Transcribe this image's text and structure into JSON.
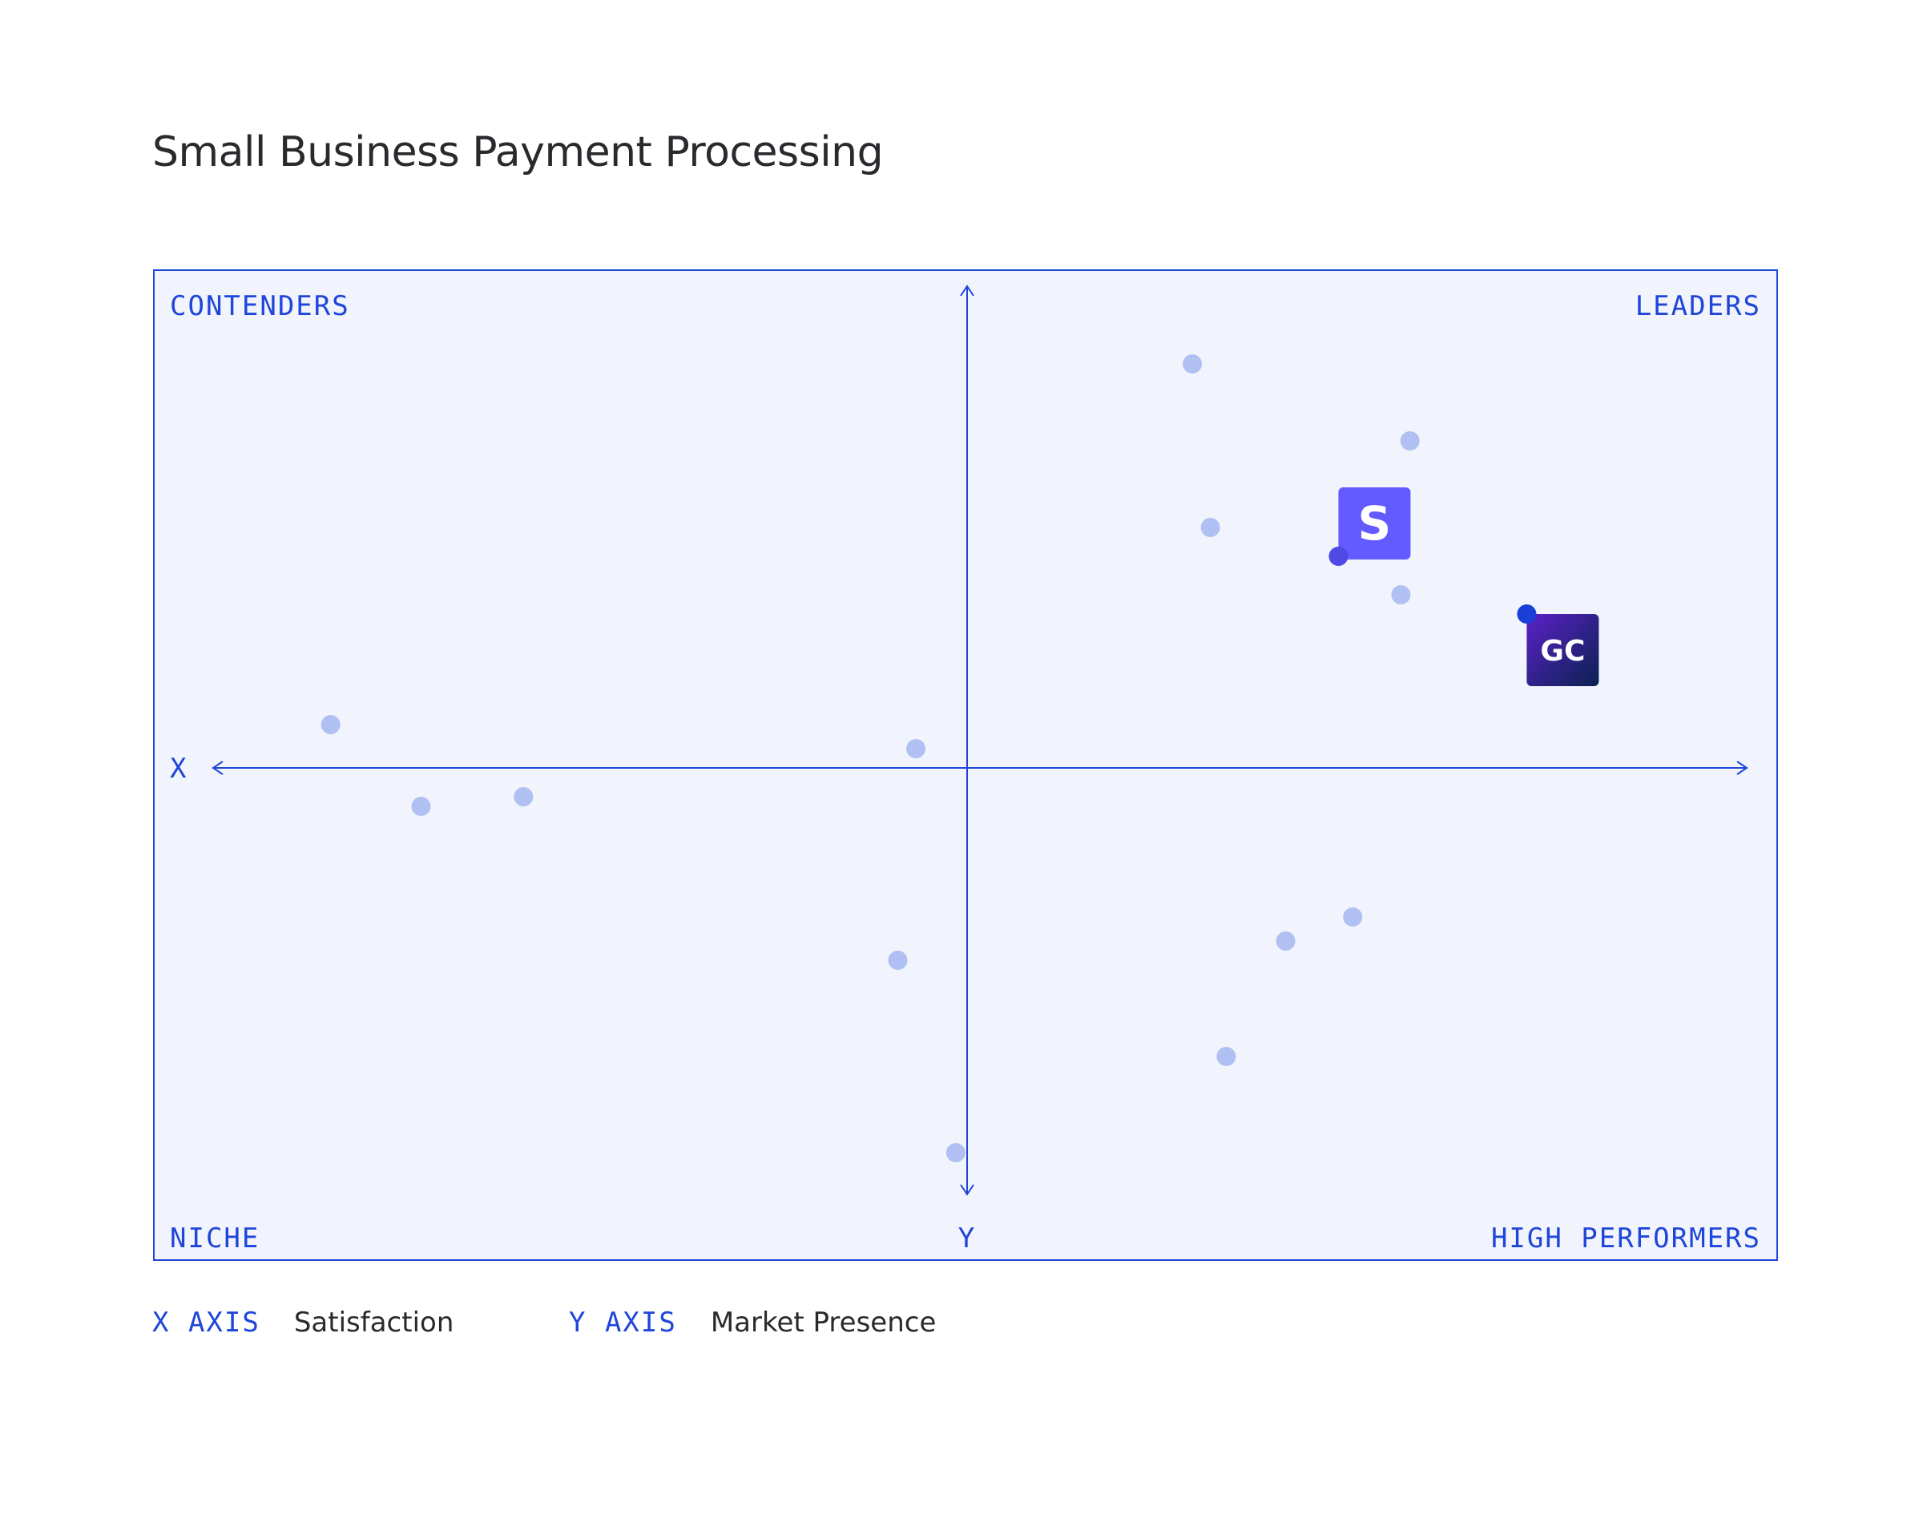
{
  "title": "Small Business Payment Processing",
  "chart_data": {
    "type": "scatter",
    "title": "Small Business Payment Processing",
    "xlabel": "Satisfaction",
    "ylabel": "Market Presence",
    "xlim": [
      -1,
      1
    ],
    "ylim": [
      -1,
      1
    ],
    "grid": false,
    "axis_letters": {
      "x": "X",
      "y": "Y"
    },
    "quadrants": {
      "top_left": "CONTENDERS",
      "top_right": "LEADERS",
      "bottom_left": "NICHE",
      "bottom_right": "HIGH PERFORMERS"
    },
    "points": [
      {
        "x": 0.299,
        "y": 0.84
      },
      {
        "x": 0.588,
        "y": 0.68
      },
      {
        "x": 0.323,
        "y": 0.5
      },
      {
        "x": 0.576,
        "y": 0.36
      },
      {
        "x": -0.845,
        "y": 0.09
      },
      {
        "x": -0.068,
        "y": 0.04
      },
      {
        "x": -0.725,
        "y": -0.08
      },
      {
        "x": -0.589,
        "y": -0.06
      },
      {
        "x": 0.512,
        "y": -0.31
      },
      {
        "x": 0.423,
        "y": -0.36
      },
      {
        "x": -0.092,
        "y": -0.4
      },
      {
        "x": 0.344,
        "y": -0.6
      },
      {
        "x": -0.015,
        "y": -0.8
      }
    ],
    "highlighted": [
      {
        "label": "S",
        "x": 0.493,
        "y": 0.44,
        "icon": "s-logo-icon",
        "color": "#635bff",
        "dot_color": "#4f49e6"
      },
      {
        "label": "GC",
        "x": 0.743,
        "y": 0.32,
        "icon": "gc-logo-icon",
        "color_start": "#5b21c9",
        "color_end": "#0a2150",
        "dot_color": "#1a3fd6"
      }
    ]
  },
  "legend": {
    "x_key": "X AXIS",
    "x_value": "Satisfaction",
    "y_key": "Y AXIS",
    "y_value": "Market Presence"
  },
  "colors": {
    "accent": "#1f45d9",
    "panel_bg": "#f1f4fc",
    "point": "#b0c0f2",
    "title": "#2a2a2e"
  }
}
